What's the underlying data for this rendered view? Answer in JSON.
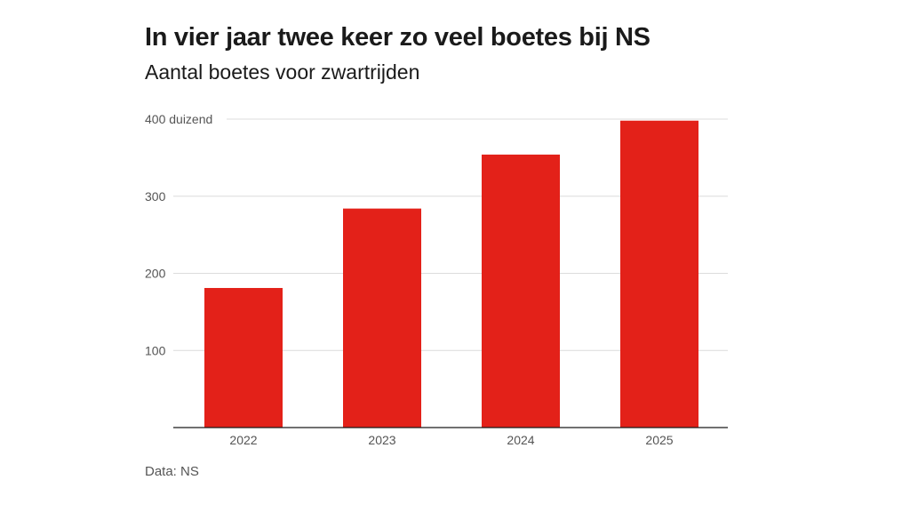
{
  "title": "In vier jaar twee keer zo veel boetes bij NS",
  "subtitle": "Aantal boetes voor zwartrijden",
  "source": "Data: NS",
  "colors": {
    "bar": "#e32119",
    "grid": "#dcdcdc",
    "axis": "#1a1a1a"
  },
  "chart_data": {
    "type": "bar",
    "title": "In vier jaar twee keer zo veel boetes bij NS",
    "subtitle": "Aantal boetes voor zwartrijden",
    "categories": [
      "2022",
      "2023",
      "2024",
      "2025"
    ],
    "values": [
      181,
      284,
      354,
      398
    ],
    "unit": "duizend",
    "ylim": [
      0,
      400
    ],
    "yticks": [
      {
        "value": 100,
        "label": "100"
      },
      {
        "value": 200,
        "label": "200"
      },
      {
        "value": 300,
        "label": "300"
      },
      {
        "value": 400,
        "label": "400 duizend"
      }
    ],
    "grid": true,
    "legend": "none"
  }
}
